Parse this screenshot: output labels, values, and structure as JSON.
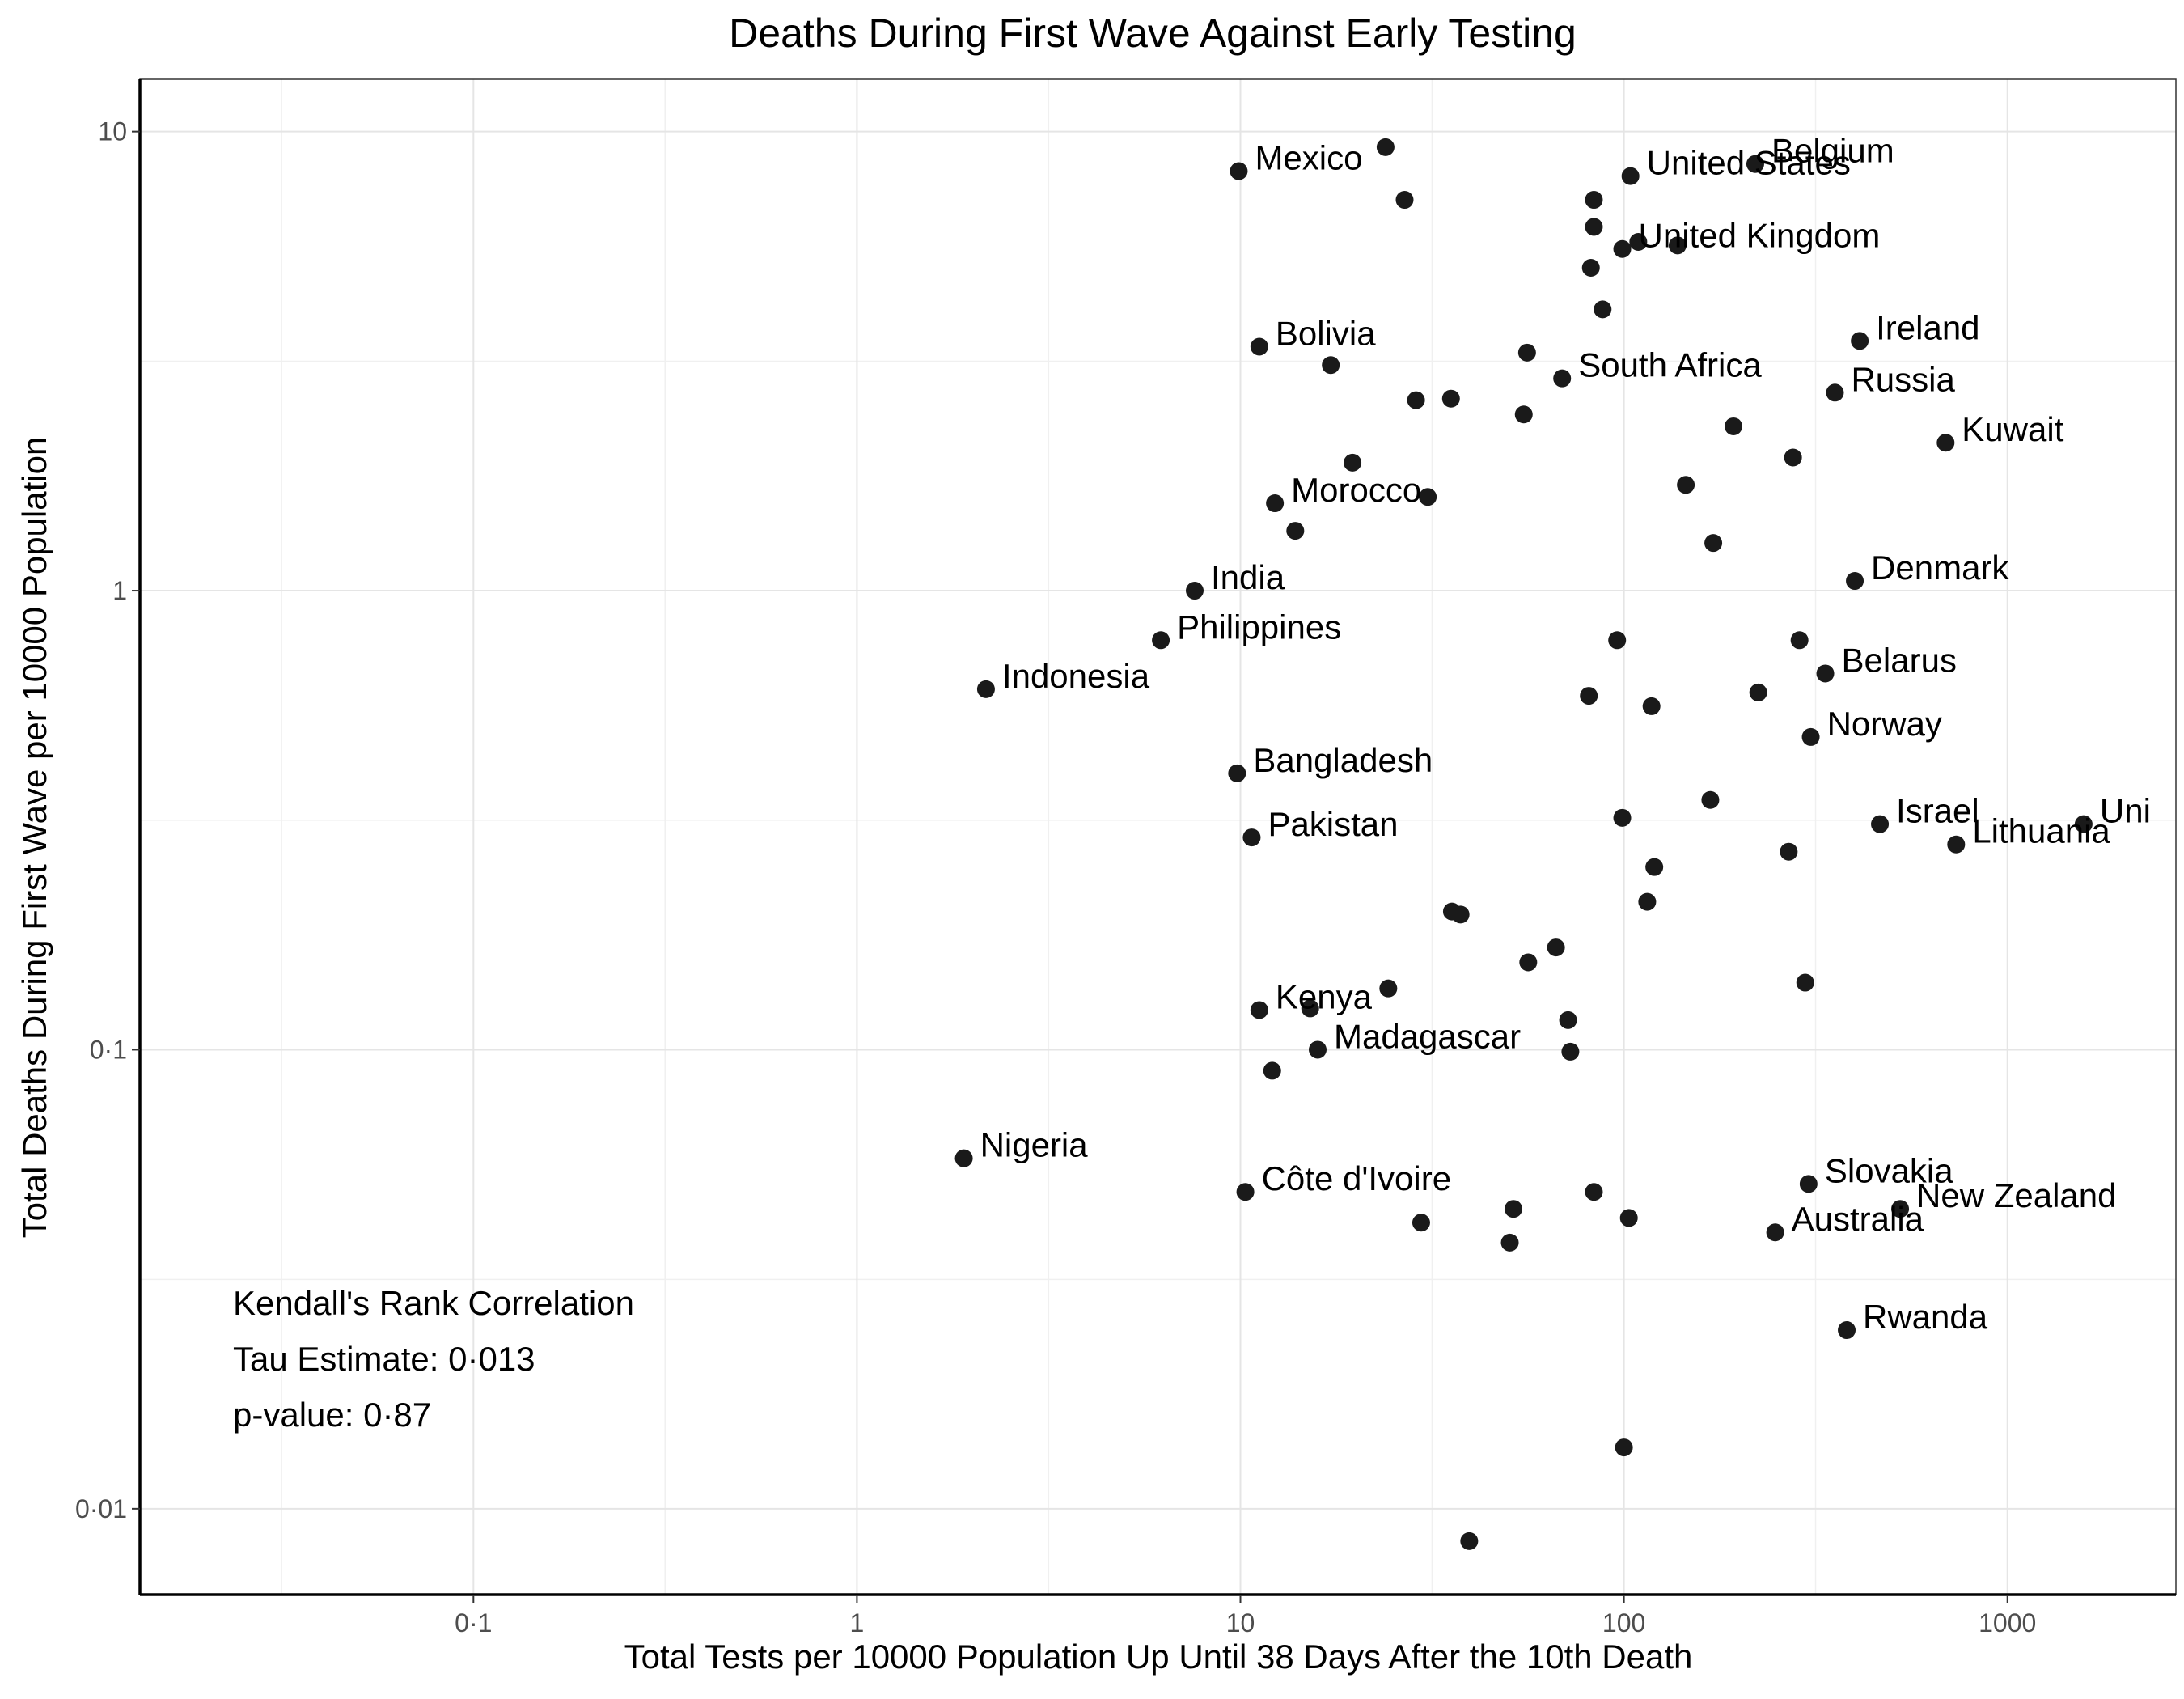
{
  "chart_data": {
    "type": "scatter",
    "title": "Deaths During First Wave Against Early Testing",
    "xlabel": "Total Tests per 10000 Population Up Until 38 Days After the 10th Death",
    "ylabel": "Total Deaths During First Wave per 10000 Population",
    "x_scale": "log10",
    "y_scale": "log10",
    "xlim": [
      0.0135,
      2750
    ],
    "ylim": [
      0.0065,
      13
    ],
    "x_ticks": [
      0.1,
      1,
      10,
      100,
      1000
    ],
    "x_tick_labels": [
      "0·1",
      "1",
      "10",
      "100",
      "1000"
    ],
    "y_ticks": [
      0.01,
      0.1,
      1,
      10
    ],
    "y_tick_labels": [
      "0·01",
      "0·1",
      "1",
      "10"
    ],
    "grid": true,
    "marker_color": "#1a1a1a",
    "annotation": {
      "lines": [
        "Kendall's Rank Correlation",
        "Tau Estimate: 0·013",
        "p-value: 0·87"
      ]
    },
    "points": [
      {
        "x": 23.9,
        "y": 9.25,
        "label": ""
      },
      {
        "x": 9.9,
        "y": 8.2,
        "label": "Mexico"
      },
      {
        "x": 26.8,
        "y": 7.1,
        "label": ""
      },
      {
        "x": 104,
        "y": 8.0,
        "label": "United States"
      },
      {
        "x": 220,
        "y": 8.5,
        "label": "Belgium"
      },
      {
        "x": 83.5,
        "y": 7.1,
        "label": ""
      },
      {
        "x": 83.5,
        "y": 6.2,
        "label": ""
      },
      {
        "x": 99,
        "y": 5.55,
        "label": "United Kingdom"
      },
      {
        "x": 109,
        "y": 5.75,
        "label": ""
      },
      {
        "x": 138,
        "y": 5.65,
        "label": ""
      },
      {
        "x": 82,
        "y": 5.05,
        "label": ""
      },
      {
        "x": 88,
        "y": 4.1,
        "label": ""
      },
      {
        "x": 11.2,
        "y": 3.4,
        "label": "Bolivia"
      },
      {
        "x": 17.2,
        "y": 3.1,
        "label": ""
      },
      {
        "x": 55.9,
        "y": 3.3,
        "label": ""
      },
      {
        "x": 69,
        "y": 2.9,
        "label": "South Africa"
      },
      {
        "x": 412,
        "y": 3.5,
        "label": "Ireland"
      },
      {
        "x": 355,
        "y": 2.7,
        "label": "Russia"
      },
      {
        "x": 28.7,
        "y": 2.6,
        "label": ""
      },
      {
        "x": 35.4,
        "y": 2.62,
        "label": ""
      },
      {
        "x": 54.8,
        "y": 2.42,
        "label": ""
      },
      {
        "x": 193,
        "y": 2.28,
        "label": ""
      },
      {
        "x": 690,
        "y": 2.1,
        "label": "Kuwait"
      },
      {
        "x": 19.6,
        "y": 1.9,
        "label": ""
      },
      {
        "x": 276,
        "y": 1.95,
        "label": ""
      },
      {
        "x": 12.3,
        "y": 1.55,
        "label": "Morocco"
      },
      {
        "x": 30.8,
        "y": 1.6,
        "label": ""
      },
      {
        "x": 145,
        "y": 1.7,
        "label": ""
      },
      {
        "x": 13.9,
        "y": 1.35,
        "label": ""
      },
      {
        "x": 171,
        "y": 1.27,
        "label": ""
      },
      {
        "x": 7.6,
        "y": 1.0,
        "label": "India"
      },
      {
        "x": 400,
        "y": 1.05,
        "label": "Denmark"
      },
      {
        "x": 6.2,
        "y": 0.78,
        "label": "Philippines"
      },
      {
        "x": 96,
        "y": 0.78,
        "label": ""
      },
      {
        "x": 287,
        "y": 0.78,
        "label": ""
      },
      {
        "x": 335,
        "y": 0.66,
        "label": "Belarus"
      },
      {
        "x": 2.17,
        "y": 0.61,
        "label": "Indonesia"
      },
      {
        "x": 81,
        "y": 0.59,
        "label": ""
      },
      {
        "x": 118,
        "y": 0.56,
        "label": ""
      },
      {
        "x": 224,
        "y": 0.6,
        "label": ""
      },
      {
        "x": 307,
        "y": 0.48,
        "label": "Norway"
      },
      {
        "x": 9.8,
        "y": 0.4,
        "label": "Bangladesh"
      },
      {
        "x": 168,
        "y": 0.35,
        "label": ""
      },
      {
        "x": 99,
        "y": 0.32,
        "label": ""
      },
      {
        "x": 465,
        "y": 0.31,
        "label": "Israel"
      },
      {
        "x": 1580,
        "y": 0.31,
        "label": "Uni"
      },
      {
        "x": 10.7,
        "y": 0.29,
        "label": "Pakistan"
      },
      {
        "x": 735,
        "y": 0.28,
        "label": "Lithuania"
      },
      {
        "x": 269,
        "y": 0.27,
        "label": ""
      },
      {
        "x": 120,
        "y": 0.25,
        "label": ""
      },
      {
        "x": 115,
        "y": 0.21,
        "label": ""
      },
      {
        "x": 35.6,
        "y": 0.2,
        "label": ""
      },
      {
        "x": 37.5,
        "y": 0.197,
        "label": ""
      },
      {
        "x": 66.5,
        "y": 0.167,
        "label": ""
      },
      {
        "x": 56.3,
        "y": 0.155,
        "label": ""
      },
      {
        "x": 24.3,
        "y": 0.136,
        "label": ""
      },
      {
        "x": 11.2,
        "y": 0.122,
        "label": "Kenya"
      },
      {
        "x": 15.2,
        "y": 0.123,
        "label": ""
      },
      {
        "x": 71.5,
        "y": 0.116,
        "label": ""
      },
      {
        "x": 297,
        "y": 0.14,
        "label": ""
      },
      {
        "x": 15.9,
        "y": 0.1,
        "label": "Madagascar"
      },
      {
        "x": 72.5,
        "y": 0.099,
        "label": ""
      },
      {
        "x": 12.1,
        "y": 0.09,
        "label": ""
      },
      {
        "x": 1.9,
        "y": 0.058,
        "label": "Nigeria"
      },
      {
        "x": 10.3,
        "y": 0.049,
        "label": "Côte d'Ivoire"
      },
      {
        "x": 83.5,
        "y": 0.049,
        "label": ""
      },
      {
        "x": 303,
        "y": 0.051,
        "label": "Slovakia"
      },
      {
        "x": 525,
        "y": 0.045,
        "label": "New Zealand"
      },
      {
        "x": 51.5,
        "y": 0.045,
        "label": ""
      },
      {
        "x": 103,
        "y": 0.043,
        "label": ""
      },
      {
        "x": 29.6,
        "y": 0.042,
        "label": ""
      },
      {
        "x": 248,
        "y": 0.04,
        "label": "Australia"
      },
      {
        "x": 50.4,
        "y": 0.038,
        "label": ""
      },
      {
        "x": 381,
        "y": 0.0245,
        "label": "Rwanda"
      },
      {
        "x": 100,
        "y": 0.0136,
        "label": ""
      },
      {
        "x": 39.5,
        "y": 0.0085,
        "label": ""
      }
    ]
  }
}
